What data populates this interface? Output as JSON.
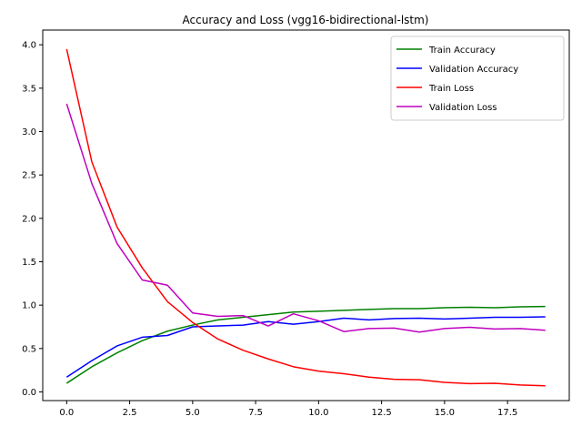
{
  "chart_data": {
    "type": "line",
    "title": "Accuracy and Loss (vgg16-bidirectional-lstm)",
    "xlabel": "",
    "ylabel": "",
    "xlim": [
      -0.95,
      19.95
    ],
    "ylim": [
      -0.1,
      4.17
    ],
    "xticks": [
      0.0,
      2.5,
      5.0,
      7.5,
      10.0,
      12.5,
      15.0,
      17.5
    ],
    "xtick_labels": [
      "0.0",
      "2.5",
      "5.0",
      "7.5",
      "10.0",
      "12.5",
      "15.0",
      "17.5"
    ],
    "yticks": [
      0.0,
      0.5,
      1.0,
      1.5,
      2.0,
      2.5,
      3.0,
      3.5,
      4.0
    ],
    "ytick_labels": [
      "0.0",
      "0.5",
      "1.0",
      "1.5",
      "2.0",
      "2.5",
      "3.0",
      "3.5",
      "4.0"
    ],
    "grid": false,
    "legend_position": "top-right",
    "x": [
      0,
      1,
      2,
      3,
      4,
      5,
      6,
      7,
      8,
      9,
      10,
      11,
      12,
      13,
      14,
      15,
      16,
      17,
      18,
      19
    ],
    "series": [
      {
        "name": "Train Accuracy",
        "color": "#008000",
        "values": [
          0.1,
          0.29,
          0.45,
          0.59,
          0.7,
          0.77,
          0.83,
          0.86,
          0.89,
          0.92,
          0.93,
          0.94,
          0.95,
          0.96,
          0.96,
          0.97,
          0.975,
          0.97,
          0.98,
          0.985
        ]
      },
      {
        "name": "Validation Accuracy",
        "color": "#0000ff",
        "values": [
          0.17,
          0.36,
          0.53,
          0.63,
          0.65,
          0.75,
          0.76,
          0.77,
          0.81,
          0.78,
          0.81,
          0.85,
          0.83,
          0.845,
          0.85,
          0.84,
          0.85,
          0.86,
          0.86,
          0.865
        ]
      },
      {
        "name": "Train Loss",
        "color": "#ff0000",
        "values": [
          3.95,
          2.65,
          1.9,
          1.43,
          1.04,
          0.8,
          0.61,
          0.48,
          0.38,
          0.29,
          0.24,
          0.21,
          0.17,
          0.145,
          0.14,
          0.11,
          0.095,
          0.1,
          0.08,
          0.07
        ]
      },
      {
        "name": "Validation Loss",
        "color": "#bf00bf",
        "values": [
          3.32,
          2.4,
          1.71,
          1.29,
          1.23,
          0.91,
          0.87,
          0.88,
          0.76,
          0.9,
          0.82,
          0.695,
          0.73,
          0.735,
          0.69,
          0.73,
          0.745,
          0.725,
          0.73,
          0.71
        ]
      }
    ]
  }
}
